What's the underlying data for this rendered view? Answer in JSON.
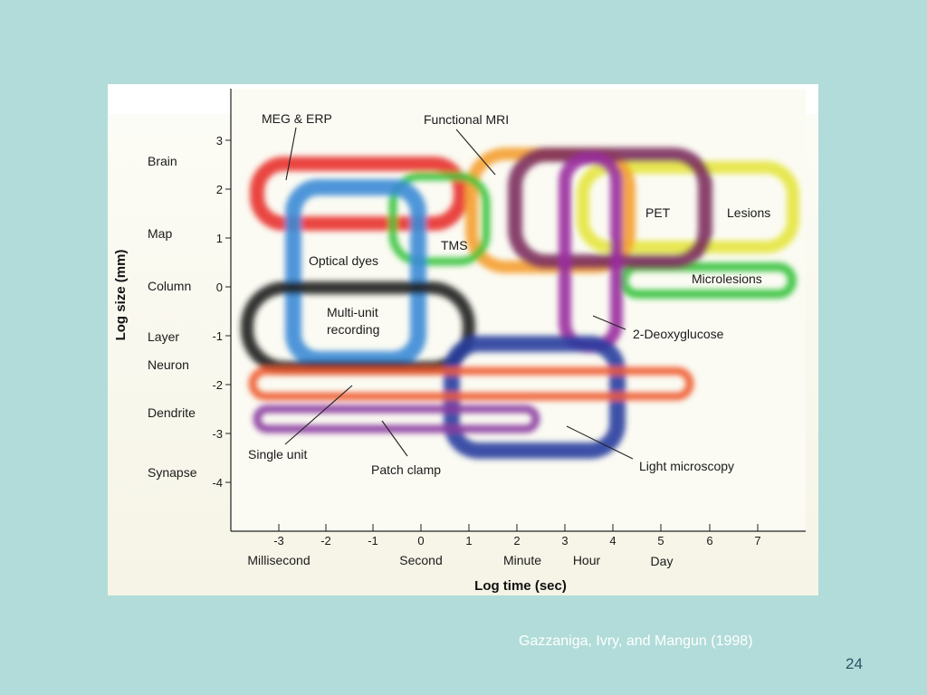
{
  "slide": {
    "caption": "Gazzaniga, Ivry, and Mangun (1998)",
    "page_number": "24"
  },
  "diagram": {
    "x_axis": {
      "title": "Log time (sec)",
      "ticks": [
        "-3",
        "-2",
        "-1",
        "0",
        "1",
        "2",
        "3",
        "4",
        "5",
        "6",
        "7"
      ],
      "unit_labels": [
        "Millisecond",
        "Second",
        "Minute",
        "Hour",
        "Day"
      ]
    },
    "y_axis": {
      "title": "Log size (mm)",
      "ticks": [
        "3",
        "2",
        "1",
        "0",
        "-1",
        "-2",
        "-3",
        "-4"
      ],
      "level_labels": [
        "Brain",
        "Map",
        "Column",
        "Layer",
        "Neuron",
        "Dendrite",
        "Synapse"
      ]
    },
    "methods": [
      {
        "label": "MEG & ERP",
        "color": "#e8322c"
      },
      {
        "label": "Functional MRI",
        "color": "#f5a030"
      },
      {
        "label": "TMS",
        "color": "#35c23a"
      },
      {
        "label": "PET",
        "color": "#7a2a5a"
      },
      {
        "label": "Lesions",
        "color": "#e6e640"
      },
      {
        "label": "Optical dyes",
        "color": "#3a8bd6"
      },
      {
        "label": "Microlesions",
        "color": "#35c23a"
      },
      {
        "label": "Multi-unit recording",
        "color": "#202020"
      },
      {
        "label": "2-Deoxyglucose",
        "color": "#9a2fa0"
      },
      {
        "label": "Single unit",
        "color": "#ee5a2e"
      },
      {
        "label": "Patch clamp",
        "color": "#8a3aa0"
      },
      {
        "label": "Light microscopy",
        "color": "#2a3d9e"
      }
    ],
    "multi_unit_lines": [
      "Multi-unit",
      "recording"
    ]
  }
}
